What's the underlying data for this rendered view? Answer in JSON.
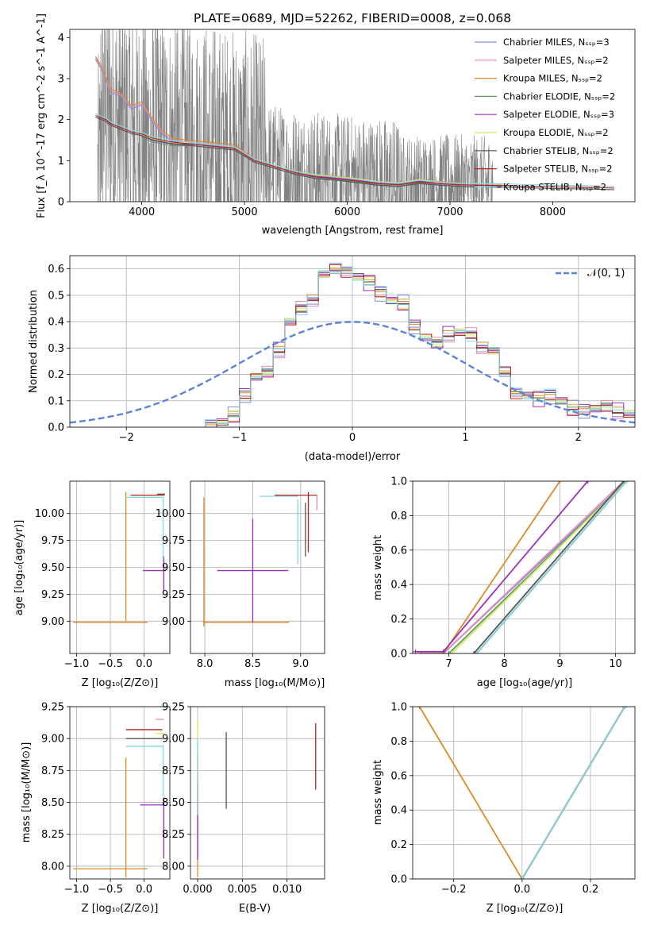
{
  "figure_title": "PLATE=0689, MJD=52262, FIBERID=0008, z=0.068",
  "chart_data": [
    {
      "id": "spectrum",
      "type": "line",
      "title": "PLATE=0689, MJD=52262, FIBERID=0008, z=0.068",
      "xlabel": "wavelength [Angstrom, rest frame]",
      "ylabel": "Flux [f_λ 10^-17 erg cm^-2 s^-1 A^-1]",
      "xlim": [
        3300,
        8800
      ],
      "ylim": [
        0,
        4.2
      ],
      "xticks": [
        4000,
        5000,
        6000,
        7000,
        8000
      ],
      "yticks": [
        0,
        1,
        2,
        3,
        4
      ],
      "grid": false,
      "legend_position": "right",
      "observed": {
        "color": "#808080",
        "x_range": [
          3570,
          7420
        ],
        "approx_continuum": [
          [
            3600,
            2.2
          ],
          [
            4000,
            1.5
          ],
          [
            4500,
            1.3
          ],
          [
            5000,
            1.0
          ],
          [
            5500,
            0.7
          ],
          [
            6000,
            0.55
          ],
          [
            6500,
            0.45
          ],
          [
            7000,
            0.45
          ],
          [
            7400,
            0.42
          ]
        ]
      },
      "series": [
        {
          "name": "Chabrier MILES, N_SSP=3",
          "color": "#7b8fe0"
        },
        {
          "name": "Salpeter MILES, N_SSP=2",
          "color": "#e88ab0"
        },
        {
          "name": "Kroupa MILES, N_SSP=2",
          "color": "#d98b2a"
        },
        {
          "name": "Chabrier ELODIE, N_SSP=2",
          "color": "#5e9a5e"
        },
        {
          "name": "Salpeter ELODIE, N_SSP=3",
          "color": "#9b30c0"
        },
        {
          "name": "Kroupa ELODIE, N_SSP=2",
          "color": "#d6e860"
        },
        {
          "name": "Chabrier STELIB, N_SSP=2",
          "color": "#555555"
        },
        {
          "name": "Salpeter STELIB, N_SSP=2",
          "color": "#b22222"
        },
        {
          "name": "Kroupa STELIB, N_SSP=2",
          "color": "#80d8e0"
        }
      ],
      "models": {
        "x": [
          3550,
          3600,
          3650,
          3700,
          3800,
          3900,
          4000,
          4100,
          4200,
          4300,
          4500,
          4700,
          4900,
          5100,
          5300,
          5500,
          5700,
          5900,
          6100,
          6300,
          6500,
          6700,
          6900,
          7100,
          7300,
          7500,
          7700,
          8000,
          8300,
          8600
        ],
        "miles": [
          3.5,
          3.3,
          3.0,
          2.7,
          2.6,
          2.3,
          2.4,
          2.0,
          1.7,
          1.5,
          1.45,
          1.4,
          1.35,
          1.0,
          0.85,
          0.7,
          0.62,
          0.58,
          0.52,
          0.45,
          0.42,
          0.5,
          0.45,
          0.42,
          null,
          null,
          null,
          null,
          null,
          null
        ],
        "elodie": [
          null,
          null,
          null,
          null,
          null,
          null,
          1.6,
          1.5,
          1.45,
          1.4,
          1.4,
          1.35,
          1.3,
          1.0,
          0.85,
          0.7,
          0.62,
          0.57,
          0.52,
          0.45,
          0.42,
          0.5,
          0.44,
          0.41,
          0.4,
          0.38,
          null,
          null,
          null,
          null
        ],
        "stelib": [
          2.1,
          2.05,
          2.0,
          1.9,
          1.8,
          1.7,
          1.65,
          1.55,
          1.5,
          1.45,
          1.4,
          1.35,
          1.3,
          1.0,
          0.85,
          0.7,
          0.6,
          0.56,
          0.5,
          0.44,
          0.41,
          0.48,
          0.44,
          0.41,
          0.4,
          0.4,
          0.38,
          0.36,
          0.35,
          0.33
        ]
      }
    },
    {
      "id": "residuals",
      "type": "line",
      "xlabel": "(data-model)/error",
      "ylabel": "Normed distribution",
      "xlim": [
        -2.5,
        2.5
      ],
      "ylim": [
        0,
        0.65
      ],
      "xticks": [
        -2,
        -1,
        0,
        1,
        2
      ],
      "yticks": [
        0.0,
        0.1,
        0.2,
        0.3,
        0.4,
        0.5,
        0.6
      ],
      "grid": true,
      "legend_position": "top-right",
      "legend": [
        "𝒩(0, 1)"
      ],
      "bin_edges": [
        -1.3,
        -1.2,
        -1.1,
        -1.0,
        -0.9,
        -0.8,
        -0.7,
        -0.6,
        -0.5,
        -0.4,
        -0.3,
        -0.2,
        -0.1,
        0.0,
        0.1,
        0.2,
        0.3,
        0.4,
        0.5,
        0.6,
        0.7,
        0.8,
        0.9,
        1.0,
        1.1,
        1.2,
        1.3,
        1.4,
        1.5,
        1.6,
        1.7,
        1.8,
        1.9,
        2.0,
        2.1,
        2.2,
        2.3,
        2.4,
        2.5
      ],
      "histogram": [
        0.005,
        0.02,
        0.045,
        0.12,
        0.19,
        0.21,
        0.29,
        0.4,
        0.45,
        0.48,
        0.58,
        0.6,
        0.59,
        0.57,
        0.55,
        0.51,
        0.48,
        0.47,
        0.38,
        0.34,
        0.32,
        0.35,
        0.36,
        0.35,
        0.3,
        0.29,
        0.21,
        0.13,
        0.12,
        0.11,
        0.12,
        0.1,
        0.07,
        0.06,
        0.07,
        0.08,
        0.06,
        0.05
      ],
      "series": [
        {
          "color": "#7b8fe0",
          "shift": 0.02
        },
        {
          "color": "#e88ab0",
          "shift": 0.015
        },
        {
          "color": "#d98b2a",
          "shift": -0.01
        },
        {
          "color": "#5e9a5e",
          "shift": 0.0
        },
        {
          "color": "#9b30c0",
          "shift": -0.02
        },
        {
          "color": "#d6e860",
          "shift": 0.005
        },
        {
          "color": "#555555",
          "shift": -0.005
        },
        {
          "color": "#b22222",
          "shift": 0.01
        },
        {
          "color": "#80d8e0",
          "shift": -0.012
        }
      ],
      "gaussian": {
        "mean": 0,
        "sigma": 1,
        "color": "#5b84d8",
        "style": "dashed"
      }
    },
    {
      "id": "age_vs_Z",
      "type": "scatter",
      "xlabel": "Z [log10(Z/Z⊙)]",
      "ylabel": "age [log10(age/yr)]",
      "xlim": [
        -1.1,
        0.38
      ],
      "ylim": [
        8.7,
        10.3
      ],
      "xticks": [
        -1.0,
        -0.5,
        0.0
      ],
      "yticks": [
        9.0,
        9.25,
        9.5,
        9.75,
        10.0
      ],
      "grid": true,
      "points": [
        {
          "x": -0.5,
          "xerr": 0.55,
          "y": 8.99,
          "yerr": 0.0,
          "color": "#d98b2a"
        },
        {
          "x": -0.27,
          "xerr": 0.0,
          "y": 9.6,
          "yerr": 0.6,
          "color": "#d98b2a"
        },
        {
          "x": 0.15,
          "xerr": 0.17,
          "y": 9.47,
          "yerr": 0.0,
          "color": "#9b30c0"
        },
        {
          "x": 0.29,
          "xerr": 0.0,
          "y": 9.44,
          "yerr": 0.16,
          "color": "#9b30c0"
        },
        {
          "x": 0.0,
          "xerr": 0.27,
          "y": 10.15,
          "yerr": 0.0,
          "color": "#80d8e0"
        },
        {
          "x": 0.28,
          "xerr": 0.0,
          "y": 9.85,
          "yerr": 0.3,
          "color": "#80d8e0"
        },
        {
          "x": 0.05,
          "xerr": 0.25,
          "y": 10.17,
          "yerr": 0.0,
          "color": "#b22222"
        },
        {
          "x": 0.25,
          "xerr": 0.06,
          "y": 10.18,
          "yerr": 0.0,
          "color": "#555555"
        }
      ]
    },
    {
      "id": "age_vs_mass",
      "type": "scatter",
      "xlabel": "mass [log10(M/M⊙)]",
      "ylabel": "",
      "xlim": [
        7.85,
        9.25
      ],
      "ylim": [
        8.7,
        10.3
      ],
      "xticks": [
        8.0,
        8.5,
        9.0
      ],
      "yticks": [
        9.0,
        9.25,
        9.5,
        9.75,
        10.0
      ],
      "grid": true,
      "points": [
        {
          "x": 8.43,
          "xerr": 0.45,
          "y": 8.99,
          "yerr": 0.0,
          "color": "#d98b2a"
        },
        {
          "x": 7.99,
          "xerr": 0.0,
          "y": 9.55,
          "yerr": 0.6,
          "color": "#d98b2a"
        },
        {
          "x": 8.5,
          "xerr": 0.37,
          "y": 9.47,
          "yerr": 0.0,
          "color": "#9b30c0"
        },
        {
          "x": 8.5,
          "xerr": 0.0,
          "y": 9.47,
          "yerr": 0.48,
          "color": "#9b30c0"
        },
        {
          "x": 8.77,
          "xerr": 0.2,
          "y": 10.16,
          "yerr": 0.0,
          "color": "#80d8e0"
        },
        {
          "x": 8.97,
          "xerr": 0.0,
          "y": 9.83,
          "yerr": 0.3,
          "color": "#80d8e0"
        },
        {
          "x": 8.95,
          "xerr": 0.22,
          "y": 10.17,
          "yerr": 0.0,
          "color": "#b22222"
        },
        {
          "x": 9.08,
          "xerr": 0.0,
          "y": 9.92,
          "yerr": 0.28,
          "color": "#b22222"
        },
        {
          "x": 9.05,
          "xerr": 0.0,
          "y": 9.85,
          "yerr": 0.25,
          "color": "#555555"
        },
        {
          "x": 9.17,
          "xerr": 0.0,
          "y": 10.1,
          "yerr": 0.07,
          "color": "#e88ab0"
        }
      ]
    },
    {
      "id": "mass_weight_vs_age",
      "type": "line",
      "xlabel": "age [log10(age/yr)]",
      "ylabel": "mass weight",
      "xlim": [
        6.35,
        10.35
      ],
      "ylim": [
        0,
        1.0
      ],
      "xticks": [
        7,
        8,
        9,
        10
      ],
      "yticks": [
        0.0,
        0.2,
        0.4,
        0.6,
        0.8,
        1.0
      ],
      "grid": true,
      "series": [
        {
          "color": "#7b8fe0",
          "points": [
            [
              6.9,
              0.0
            ],
            [
              10.2,
              1.0
            ]
          ]
        },
        {
          "color": "#e88ab0",
          "points": [
            [
              6.9,
              0.0
            ],
            [
              10.15,
              1.0
            ]
          ]
        },
        {
          "color": "#d98b2a",
          "points": [
            [
              6.5,
              0.0
            ],
            [
              6.9,
              0.0
            ],
            [
              9.0,
              1.0
            ]
          ]
        },
        {
          "color": "#5e9a5e",
          "points": [
            [
              7.0,
              0.0
            ],
            [
              10.2,
              1.0
            ]
          ]
        },
        {
          "color": "#9b30c0",
          "points": [
            [
              6.4,
              0.01
            ],
            [
              6.9,
              0.01
            ],
            [
              9.5,
              1.0
            ]
          ]
        },
        {
          "color": "#d6e860",
          "points": [
            [
              7.05,
              0.0
            ],
            [
              10.2,
              1.0
            ]
          ]
        },
        {
          "color": "#555555",
          "points": [
            [
              7.45,
              0.0
            ],
            [
              10.15,
              1.0
            ]
          ]
        },
        {
          "color": "#b22222",
          "points": [
            [
              7.5,
              0.0
            ],
            [
              10.2,
              1.0
            ]
          ]
        },
        {
          "color": "#80d8e0",
          "points": [
            [
              7.5,
              0.0
            ],
            [
              10.2,
              1.0
            ]
          ]
        }
      ]
    },
    {
      "id": "mass_vs_Z",
      "type": "scatter",
      "xlabel": "Z [log10(Z/Z⊙)]",
      "ylabel": "mass [log10(M/M⊙)]",
      "xlim": [
        -1.1,
        0.38
      ],
      "ylim": [
        7.9,
        9.25
      ],
      "xticks": [
        -1.0,
        -0.5,
        0.0
      ],
      "yticks": [
        8.0,
        8.25,
        8.5,
        8.75,
        9.0,
        9.25
      ],
      "grid": true,
      "points": [
        {
          "x": -0.5,
          "xerr": 0.55,
          "y": 7.98,
          "yerr": 0.0,
          "color": "#d98b2a"
        },
        {
          "x": -0.27,
          "xerr": 0.0,
          "y": 8.38,
          "yerr": 0.47,
          "color": "#d98b2a"
        },
        {
          "x": 0.12,
          "xerr": 0.18,
          "y": 8.48,
          "yerr": 0.0,
          "color": "#9b30c0"
        },
        {
          "x": 0.29,
          "xerr": 0.0,
          "y": 8.3,
          "yerr": 0.24,
          "color": "#9b30c0"
        },
        {
          "x": 0.0,
          "xerr": 0.27,
          "y": 8.94,
          "yerr": 0.0,
          "color": "#80d8e0"
        },
        {
          "x": 0.28,
          "xerr": 0.0,
          "y": 8.75,
          "yerr": 0.2,
          "color": "#80d8e0"
        },
        {
          "x": 0.0,
          "xerr": 0.27,
          "y": 9.07,
          "yerr": 0.0,
          "color": "#b22222"
        },
        {
          "x": 0.0,
          "xerr": 0.27,
          "y": 9.0,
          "yerr": 0.0,
          "color": "#555555"
        },
        {
          "x": 0.23,
          "xerr": 0.06,
          "y": 9.15,
          "yerr": 0.0,
          "color": "#e88ab0"
        },
        {
          "x": 0.23,
          "xerr": 0.06,
          "y": 9.04,
          "yerr": 0.0,
          "color": "#d6e860"
        }
      ]
    },
    {
      "id": "mass_vs_ebv",
      "type": "scatter",
      "xlabel": "E(B-V)",
      "ylabel": "",
      "xlim": [
        -0.0008,
        0.0142
      ],
      "ylim": [
        7.9,
        9.25
      ],
      "xticks": [
        0.0,
        0.005,
        0.01
      ],
      "xtick_labels": [
        "0.000",
        "0.005",
        "0.010"
      ],
      "yticks": [
        8.0,
        8.25,
        8.5,
        8.75,
        9.0,
        9.25
      ],
      "grid": true,
      "points": [
        {
          "x": 0.0,
          "xerr": 0.0,
          "y": 8.4,
          "yerr": 0.48,
          "color": "#d98b2a"
        },
        {
          "x": 0.0,
          "xerr": 0.0,
          "y": 8.35,
          "yerr": 0.3,
          "color": "#9b30c0"
        },
        {
          "x": 0.0,
          "xerr": 0.0,
          "y": 8.85,
          "yerr": 0.3,
          "color": "#d6e860"
        },
        {
          "x": 0.0,
          "xerr": 0.0,
          "y": 8.7,
          "yerr": 0.3,
          "color": "#80d8e0"
        },
        {
          "x": 0.0032,
          "xerr": 0.0,
          "y": 8.75,
          "yerr": 0.3,
          "color": "#555555"
        },
        {
          "x": 0.0132,
          "xerr": 0.0,
          "y": 8.86,
          "yerr": 0.26,
          "color": "#b22222"
        }
      ]
    },
    {
      "id": "mass_weight_vs_Z",
      "type": "line",
      "xlabel": "Z [log10(Z/Z⊙)]",
      "ylabel": "mass weight",
      "xlim": [
        -0.32,
        0.33
      ],
      "ylim": [
        0,
        1.0
      ],
      "xticks": [
        -0.2,
        0.0,
        0.2
      ],
      "yticks": [
        0.0,
        0.2,
        0.4,
        0.6,
        0.8,
        1.0
      ],
      "grid": true,
      "series": [
        {
          "color": "#d98b2a",
          "points": [
            [
              -0.3,
              1.0
            ],
            [
              0.0,
              0.0
            ]
          ]
        },
        {
          "color": "#9b30c0",
          "points": [
            [
              0.0,
              0.0
            ],
            [
              0.3,
              1.0
            ]
          ]
        },
        {
          "color": "#7b8fe0",
          "points": [
            [
              0.0,
              0.0
            ],
            [
              0.3,
              1.0
            ]
          ]
        },
        {
          "color": "#5e9a5e",
          "points": [
            [
              0.0,
              0.0
            ],
            [
              0.3,
              1.0
            ]
          ]
        },
        {
          "color": "#d6e860",
          "points": [
            [
              0.0,
              0.0
            ],
            [
              0.3,
              1.0
            ]
          ]
        },
        {
          "color": "#555555",
          "points": [
            [
              0.0,
              0.0
            ],
            [
              0.3,
              1.0
            ]
          ]
        },
        {
          "color": "#b22222",
          "points": [
            [
              0.0,
              0.0
            ],
            [
              0.3,
              1.0
            ]
          ]
        },
        {
          "color": "#80d8e0",
          "points": [
            [
              0.0,
              0.0
            ],
            [
              0.3,
              1.0
            ]
          ]
        }
      ]
    }
  ]
}
